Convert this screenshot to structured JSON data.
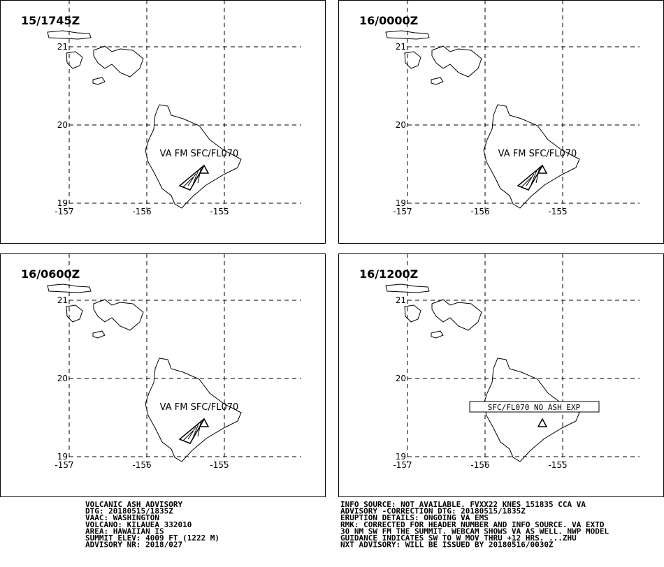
{
  "panels": [
    {
      "time": "15/1745Z",
      "annotation": "VA FM SFC/FL070",
      "ash": true
    },
    {
      "time": "16/0000Z",
      "annotation": "VA FM SFC/FL070",
      "ash": true
    },
    {
      "time": "16/0600Z",
      "annotation": "VA FM SFC/FL070",
      "ash": true
    },
    {
      "time": "16/1200Z",
      "annotation": "SFC/FL070 NO ASH EXP",
      "ash": false
    }
  ],
  "grid": {
    "lat_labels": [
      21,
      20,
      19
    ],
    "lon_labels": [
      -157,
      -156,
      -155
    ]
  },
  "advisory_left": [
    "VOLCANIC ASH ADVISORY",
    "DTG: 20180515/1835Z",
    "VAAC: WASHINGTON",
    "VOLCANO: KILAUEA 332010",
    "AREA: HAWAIIAN IS",
    "SUMMIT ELEV: 4009 FT (1222 M)",
    "ADVISORY NR: 2018/027"
  ],
  "advisory_right": [
    "INFO SOURCE: NOT AVAILABLE. FVXX22 KNES 151835 CCA VA",
    "ADVISORY -CORRECTION DTG: 20180515/1835Z",
    "ERUPTION DETAILS: ONGOING VA EMS",
    "RMK: CORRECTED FOR HEADER NUMBER AND INFO SOURCE. VA EXTD",
    "30 NM SW FM THE SUMMIT. WEBCAM SHOWS VA AS WELL. NWP MODEL",
    "GUIDANCE INDICATES SW TO W MOV THRU +12 HRS. ...ZHU",
    "NXT ADVISORY: WILL BE ISSUED BY 20180516/0030Z"
  ]
}
